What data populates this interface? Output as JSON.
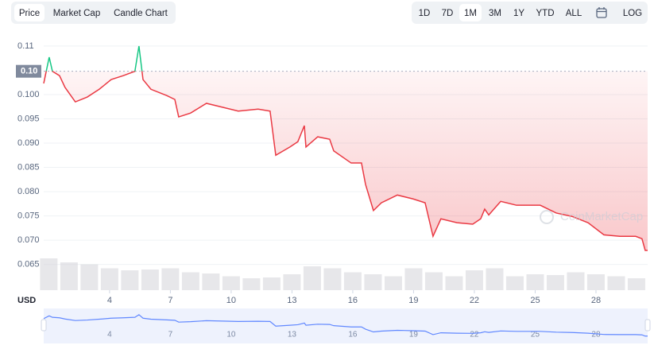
{
  "tabs": [
    "Price",
    "Market Cap",
    "Candle Chart"
  ],
  "ranges": [
    "1D",
    "7D",
    "1M",
    "3M",
    "1Y",
    "YTD",
    "ALL"
  ],
  "log_button": "LOG",
  "chart_data": {
    "type": "line",
    "x": [
      0.75,
      1.02,
      1.18,
      1.53,
      1.8,
      2.31,
      2.9,
      3.49,
      4.08,
      4.67,
      5.25,
      5.45,
      5.65,
      6.04,
      6.82,
      7.22,
      7.41,
      8.0,
      8.78,
      9.57,
      10.35,
      11.33,
      11.92,
      12.2,
      12.9,
      13.29,
      13.61,
      13.69,
      14.27,
      14.86,
      15.06,
      15.92,
      16.43,
      16.63,
      17.02,
      17.41,
      18.2,
      18.98,
      19.57,
      19.96,
      20.35,
      21.14,
      21.92,
      22.31,
      22.51,
      22.71,
      23.3,
      24.08,
      25.25,
      26.04,
      26.82,
      27.61,
      28.39,
      29.18,
      29.96,
      30.27,
      30.43,
      30.55
    ],
    "values": [
      0.1023,
      0.1077,
      0.1048,
      0.1039,
      0.1015,
      0.0985,
      0.0995,
      0.1011,
      0.1031,
      0.1039,
      0.1048,
      0.11,
      0.1031,
      0.1011,
      0.0998,
      0.099,
      0.0954,
      0.0962,
      0.0982,
      0.0974,
      0.0966,
      0.097,
      0.0966,
      0.0875,
      0.0892,
      0.0903,
      0.0936,
      0.0892,
      0.0913,
      0.0908,
      0.0884,
      0.0859,
      0.0859,
      0.0815,
      0.0761,
      0.0777,
      0.0793,
      0.0785,
      0.0777,
      0.0708,
      0.0744,
      0.0736,
      0.0733,
      0.0744,
      0.0764,
      0.0752,
      0.078,
      0.0772,
      0.0772,
      0.0756,
      0.0749,
      0.0736,
      0.0711,
      0.0708,
      0.0708,
      0.0703,
      0.0679,
      0.0679
    ],
    "color": "#ea3943",
    "up_color": "#16c784",
    "reference_line": {
      "value": 0.1048,
      "label": "0.10"
    },
    "xlim": [
      0.75,
      30.55
    ],
    "xticks": [
      4,
      7,
      10,
      13,
      16,
      19,
      22,
      25,
      28
    ],
    "ylim": [
      0.0597,
      0.1113
    ],
    "yticks": [
      0.11,
      {
        "value": 0.1,
        "label": "0.100"
      },
      0.095,
      {
        "value": 0.09,
        "label": "0.090"
      },
      0.085,
      {
        "value": 0.08,
        "label": "0.080"
      },
      0.075,
      {
        "value": 0.07,
        "label": "0.070"
      },
      0.065
    ],
    "grid": true,
    "volume": {
      "x": [
        1,
        2,
        3,
        4,
        5,
        6,
        7,
        8,
        9,
        10,
        11,
        12,
        13,
        14,
        15,
        16,
        17,
        18,
        19,
        20,
        21,
        22,
        23,
        24,
        25,
        26,
        27,
        28,
        29,
        30
      ],
      "values": [
        80,
        70,
        65,
        55,
        50,
        52,
        55,
        45,
        42,
        35,
        30,
        32,
        40,
        60,
        55,
        45,
        40,
        35,
        55,
        45,
        35,
        50,
        55,
        35,
        40,
        38,
        45,
        40,
        35,
        30
      ],
      "color": "#d7d7dc",
      "y2lim": [
        0,
        100
      ]
    },
    "currency": "USD",
    "watermark": "CoinMarketCap"
  }
}
